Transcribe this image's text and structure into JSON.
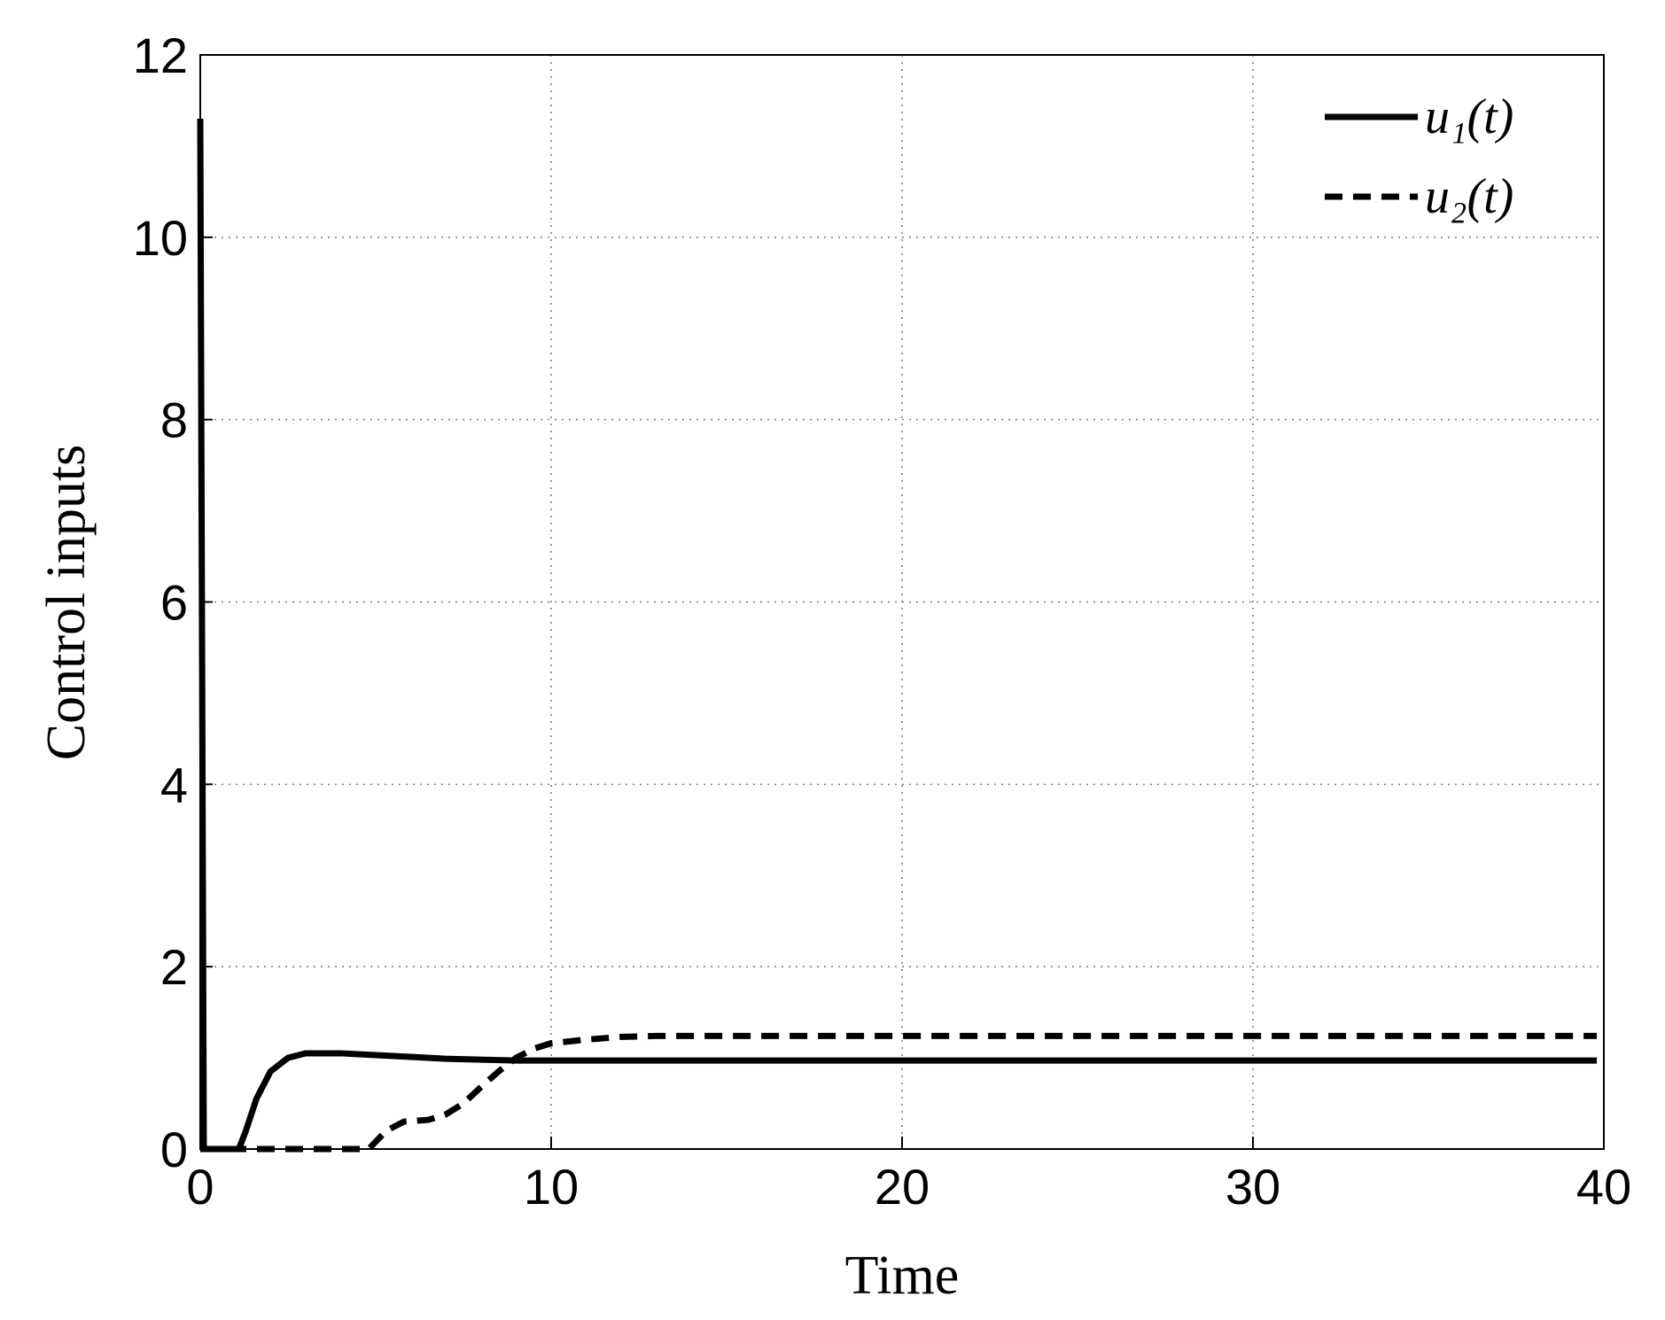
{
  "chart_data": {
    "type": "line",
    "x_label": "Time",
    "y_label": "Control inputs",
    "xlim": [
      0,
      40
    ],
    "xticks": [
      0,
      10,
      20,
      30,
      40
    ],
    "ylim": [
      0,
      12
    ],
    "yticks": [
      0,
      2,
      4,
      6,
      8,
      10,
      12
    ],
    "grid": true,
    "legend": "top-right",
    "series": [
      {
        "name": "u₁(t)",
        "color": "#000000",
        "dash": "solid",
        "x": [
          0,
          0.1,
          1.1,
          1.3,
          1.6,
          2,
          2.5,
          3,
          4,
          5,
          6,
          7,
          8,
          9,
          10,
          20,
          30,
          39.8
        ],
        "values": [
          11.3,
          0,
          0,
          0.2,
          0.55,
          0.85,
          1.0,
          1.05,
          1.05,
          1.03,
          1.01,
          0.99,
          0.98,
          0.97,
          0.97,
          0.97,
          0.97,
          0.97
        ]
      },
      {
        "name": "u₂(t)",
        "color": "#000000",
        "dash": "dashed",
        "x": [
          0,
          4.8,
          5.3,
          5.8,
          6.5,
          7,
          7.5,
          8,
          8.5,
          9,
          9.5,
          10,
          11,
          12,
          13,
          20,
          30,
          39.8
        ],
        "values": [
          0,
          0,
          0.2,
          0.3,
          0.32,
          0.38,
          0.5,
          0.68,
          0.85,
          1.0,
          1.1,
          1.16,
          1.2,
          1.23,
          1.24,
          1.24,
          1.24,
          1.24
        ]
      }
    ]
  }
}
